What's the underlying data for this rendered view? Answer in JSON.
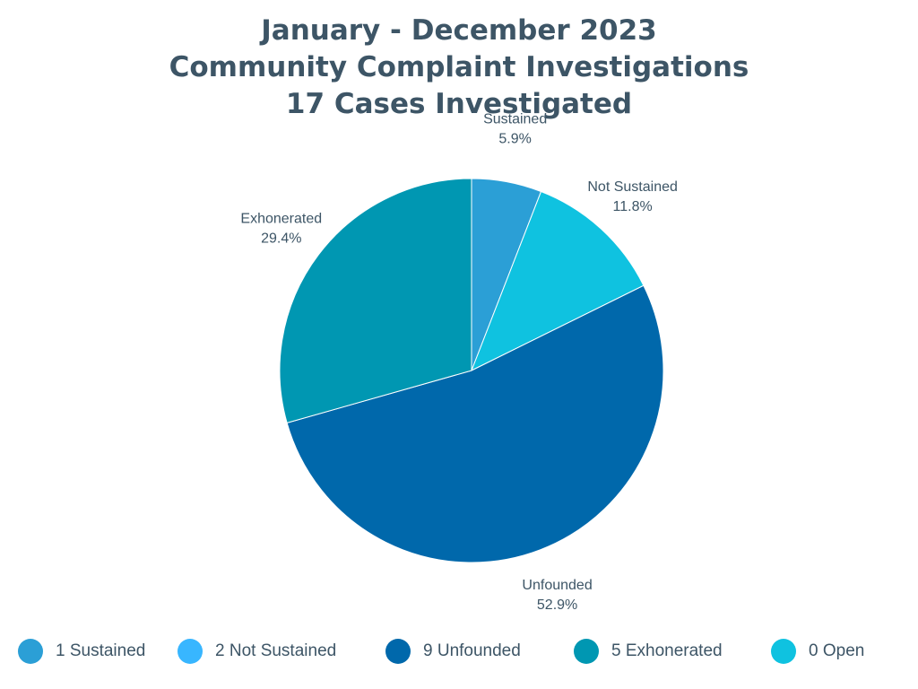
{
  "chart_data": {
    "type": "pie",
    "title": "January - December 2023",
    "subtitle_lines": [
      "Community Complaint Investigations",
      "17 Cases Investigated"
    ],
    "slices": [
      {
        "name": "Sustained",
        "count": 1,
        "value": 5.9,
        "label": "5.9%",
        "color": "#2b9fd6"
      },
      {
        "name": "Not Sustained",
        "count": 2,
        "value": 11.8,
        "label": "11.8%",
        "color": "#0fc2e0"
      },
      {
        "name": "Unfounded",
        "count": 9,
        "value": 52.9,
        "label": "52.9%",
        "color": "#0068ab"
      },
      {
        "name": "Exhonerated",
        "count": 5,
        "value": 29.4,
        "label": "29.4%",
        "color": "#0097b2"
      }
    ],
    "legend": [
      {
        "text": "1 Sustained",
        "color": "#2b9fd6"
      },
      {
        "text": "2 Not Sustained",
        "color": "#38b6ff"
      },
      {
        "text": "9 Unfounded",
        "color": "#0068ab"
      },
      {
        "text": "5 Exhonerated",
        "color": "#0097b2"
      },
      {
        "text": "0 Open",
        "color": "#0fc2e0"
      }
    ],
    "legend_position": "bottom"
  }
}
